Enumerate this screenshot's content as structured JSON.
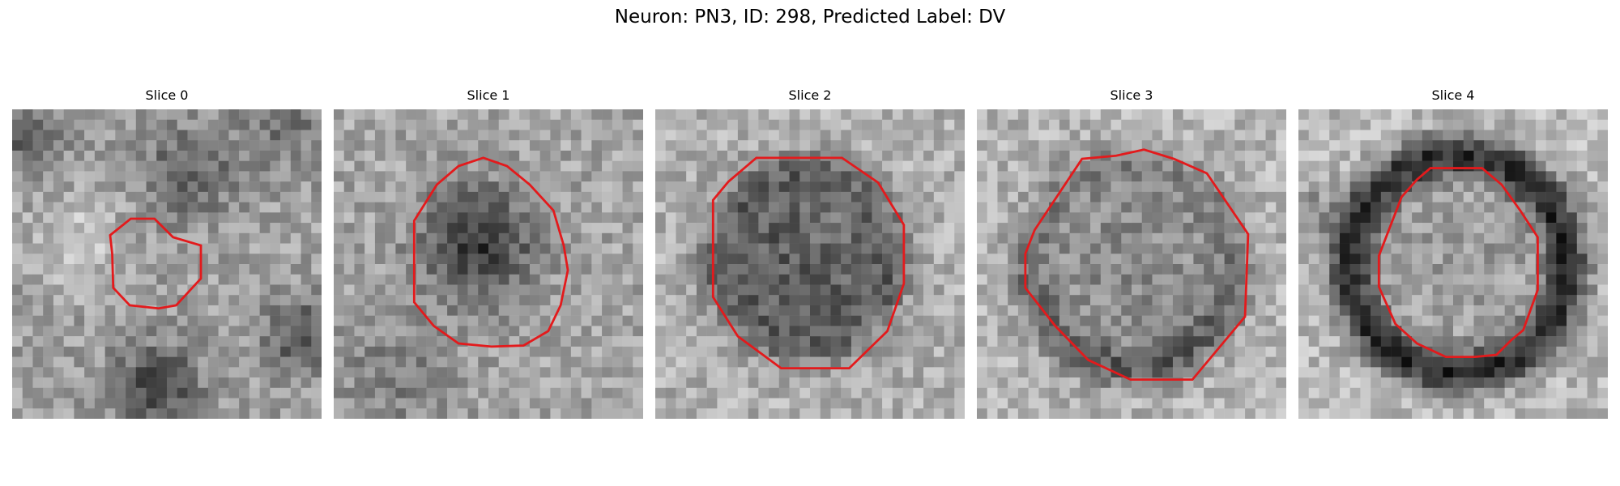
{
  "figure": {
    "title": "Neuron: PN3, ID: 298, Predicted Label: DV"
  },
  "panels": [
    {
      "title": "Slice 0"
    },
    {
      "title": "Slice 1"
    },
    {
      "title": "Slice 2"
    },
    {
      "title": "Slice 3"
    },
    {
      "title": "Slice 4"
    }
  ],
  "colors": {
    "contour": "#e31a1c"
  }
}
